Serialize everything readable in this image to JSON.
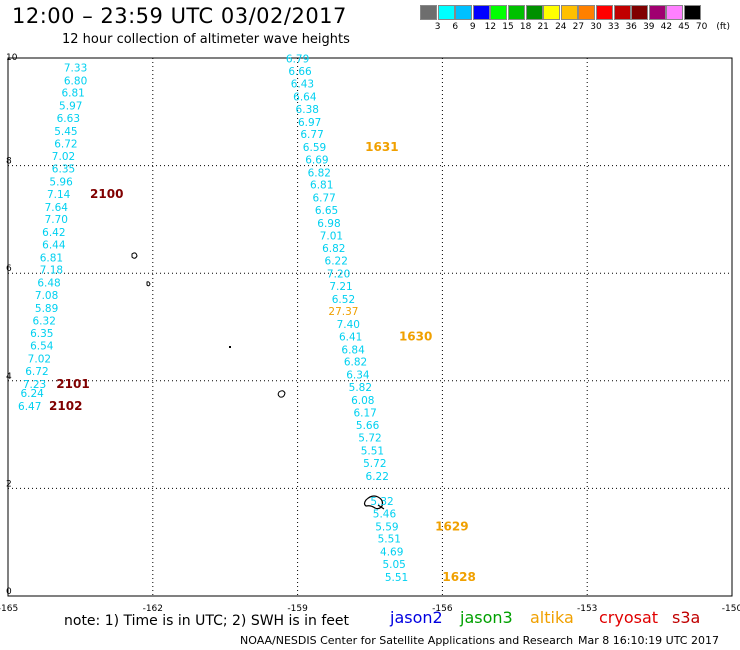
{
  "title": "12:00 – 23:59 UTC 03/02/2017",
  "subtitle": "12 hour collection of altimeter wave heights",
  "colorbar": {
    "labels": [
      "3",
      "6",
      "9",
      "12",
      "15",
      "18",
      "21",
      "24",
      "27",
      "30",
      "33",
      "36",
      "39",
      "42",
      "45",
      "70",
      "(ft)"
    ],
    "colors": [
      "#6e6e6e",
      "#00ffff",
      "#00c0ff",
      "#0000ff",
      "#00ff00",
      "#00c000",
      "#009000",
      "#ffff00",
      "#ffc000",
      "#ff8000",
      "#ff0000",
      "#c00000",
      "#800000",
      "#a00070",
      "#ff80ff",
      "#000000"
    ]
  },
  "map": {
    "lon_ticks": [
      "-165",
      "-162",
      "-159",
      "-156",
      "-153",
      "-150"
    ],
    "lat_ticks": [
      "0",
      "2",
      "4",
      "6",
      "8",
      "10"
    ],
    "lon_range": [
      -165,
      -150
    ],
    "lat_range": [
      0,
      10
    ]
  },
  "tracks": {
    "left_track": {
      "color": "#00d0f0",
      "points": [
        {
          "lon": -163.6,
          "lat": 9.75,
          "v": "7.33"
        },
        {
          "lon": -163.6,
          "lat": 9.51,
          "v": "6.80"
        },
        {
          "lon": -163.65,
          "lat": 9.28,
          "v": "6.81"
        },
        {
          "lon": -163.7,
          "lat": 9.04,
          "v": "5.97"
        },
        {
          "lon": -163.75,
          "lat": 8.81,
          "v": "6.63"
        },
        {
          "lon": -163.8,
          "lat": 8.57,
          "v": "5.45"
        },
        {
          "lon": -163.8,
          "lat": 8.34,
          "v": "6.72"
        },
        {
          "lon": -163.85,
          "lat": 8.1,
          "v": "7.02"
        },
        {
          "lon": -163.85,
          "lat": 7.87,
          "v": "6.35"
        },
        {
          "lon": -163.9,
          "lat": 7.63,
          "v": "5.96"
        },
        {
          "lon": -163.95,
          "lat": 7.4,
          "v": "7.14"
        },
        {
          "lon": -164.0,
          "lat": 7.16,
          "v": "7.64"
        },
        {
          "lon": -164.0,
          "lat": 6.93,
          "v": "7.70"
        },
        {
          "lon": -164.05,
          "lat": 6.69,
          "v": "6.42"
        },
        {
          "lon": -164.05,
          "lat": 6.46,
          "v": "6.44"
        },
        {
          "lon": -164.1,
          "lat": 6.22,
          "v": "6.81"
        },
        {
          "lon": -164.1,
          "lat": 5.99,
          "v": "7.18"
        },
        {
          "lon": -164.15,
          "lat": 5.75,
          "v": "6.48"
        },
        {
          "lon": -164.2,
          "lat": 5.52,
          "v": "7.08"
        },
        {
          "lon": -164.2,
          "lat": 5.28,
          "v": "5.89"
        },
        {
          "lon": -164.25,
          "lat": 5.05,
          "v": "6.32"
        },
        {
          "lon": -164.3,
          "lat": 4.81,
          "v": "6.35"
        },
        {
          "lon": -164.3,
          "lat": 4.58,
          "v": "6.54"
        },
        {
          "lon": -164.35,
          "lat": 4.34,
          "v": "7.02"
        },
        {
          "lon": -164.4,
          "lat": 4.11,
          "v": "6.72"
        },
        {
          "lon": -164.45,
          "lat": 3.87,
          "v": "7.23"
        },
        {
          "lon": -164.5,
          "lat": 3.7,
          "v": "6.24"
        },
        {
          "lon": -164.55,
          "lat": 3.46,
          "v": "6.47"
        }
      ],
      "time_labels": [
        {
          "lon": -163.3,
          "lat": 7.4,
          "t": "2100"
        },
        {
          "lon": -164.0,
          "lat": 3.87,
          "t": "2101"
        },
        {
          "lon": -164.15,
          "lat": 3.46,
          "t": "2102"
        }
      ]
    },
    "right_track": {
      "points": [
        {
          "lon": -159.0,
          "lat": 9.92,
          "v": "6.79",
          "c": "#00d0f0"
        },
        {
          "lon": -158.95,
          "lat": 9.68,
          "v": "6.66",
          "c": "#00d0f0"
        },
        {
          "lon": -158.9,
          "lat": 9.45,
          "v": "6.43",
          "c": "#00d0f0"
        },
        {
          "lon": -158.85,
          "lat": 9.21,
          "v": "6.64",
          "c": "#00d0f0"
        },
        {
          "lon": -158.8,
          "lat": 8.98,
          "v": "6.38",
          "c": "#00d0f0"
        },
        {
          "lon": -158.75,
          "lat": 8.74,
          "v": "6.97",
          "c": "#00d0f0"
        },
        {
          "lon": -158.7,
          "lat": 8.51,
          "v": "6.77",
          "c": "#00d0f0"
        },
        {
          "lon": -158.65,
          "lat": 8.27,
          "v": "6.59",
          "c": "#00d0f0"
        },
        {
          "lon": -158.6,
          "lat": 8.04,
          "v": "6.69",
          "c": "#00d0f0"
        },
        {
          "lon": -158.55,
          "lat": 7.8,
          "v": "6.82",
          "c": "#00d0f0"
        },
        {
          "lon": -158.5,
          "lat": 7.57,
          "v": "6.81",
          "c": "#00d0f0"
        },
        {
          "lon": -158.45,
          "lat": 7.33,
          "v": "6.77",
          "c": "#00d0f0"
        },
        {
          "lon": -158.4,
          "lat": 7.1,
          "v": "6.65",
          "c": "#00d0f0"
        },
        {
          "lon": -158.35,
          "lat": 6.86,
          "v": "6.98",
          "c": "#00d0f0"
        },
        {
          "lon": -158.3,
          "lat": 6.63,
          "v": "7.01",
          "c": "#00d0f0"
        },
        {
          "lon": -158.25,
          "lat": 6.39,
          "v": "6.82",
          "c": "#00d0f0"
        },
        {
          "lon": -158.2,
          "lat": 6.16,
          "v": "6.22",
          "c": "#00d0f0"
        },
        {
          "lon": -158.15,
          "lat": 5.92,
          "v": "7.20",
          "c": "#00d0f0"
        },
        {
          "lon": -158.1,
          "lat": 5.69,
          "v": "7.21",
          "c": "#00d0f0"
        },
        {
          "lon": -158.05,
          "lat": 5.45,
          "v": "6.52",
          "c": "#00d0f0"
        },
        {
          "lon": -158.05,
          "lat": 5.22,
          "v": "27.37",
          "c": "#f0a000"
        },
        {
          "lon": -157.95,
          "lat": 4.98,
          "v": "7.40",
          "c": "#00d0f0"
        },
        {
          "lon": -157.9,
          "lat": 4.75,
          "v": "6.41",
          "c": "#00d0f0"
        },
        {
          "lon": -157.85,
          "lat": 4.51,
          "v": "6.84",
          "c": "#00d0f0"
        },
        {
          "lon": -157.8,
          "lat": 4.28,
          "v": "6.82",
          "c": "#00d0f0"
        },
        {
          "lon": -157.75,
          "lat": 4.04,
          "v": "6.34",
          "c": "#00d0f0"
        },
        {
          "lon": -157.7,
          "lat": 3.81,
          "v": "5.82",
          "c": "#00d0f0"
        },
        {
          "lon": -157.65,
          "lat": 3.57,
          "v": "6.08",
          "c": "#00d0f0"
        },
        {
          "lon": -157.6,
          "lat": 3.34,
          "v": "6.17",
          "c": "#00d0f0"
        },
        {
          "lon": -157.55,
          "lat": 3.1,
          "v": "5.66",
          "c": "#00d0f0"
        },
        {
          "lon": -157.5,
          "lat": 2.87,
          "v": "5.72",
          "c": "#00d0f0"
        },
        {
          "lon": -157.45,
          "lat": 2.63,
          "v": "5.51",
          "c": "#00d0f0"
        },
        {
          "lon": -157.4,
          "lat": 2.4,
          "v": "5.72",
          "c": "#00d0f0"
        },
        {
          "lon": -157.35,
          "lat": 2.16,
          "v": "6.22",
          "c": "#00d0f0"
        },
        {
          "lon": -157.25,
          "lat": 1.69,
          "v": "5.32",
          "c": "#00d0f0"
        },
        {
          "lon": -157.2,
          "lat": 1.46,
          "v": "5.46",
          "c": "#00d0f0"
        },
        {
          "lon": -157.15,
          "lat": 1.22,
          "v": "5.59",
          "c": "#00d0f0"
        },
        {
          "lon": -157.1,
          "lat": 0.99,
          "v": "5.51",
          "c": "#00d0f0"
        },
        {
          "lon": -157.05,
          "lat": 0.75,
          "v": "4.69",
          "c": "#00d0f0"
        },
        {
          "lon": -157.0,
          "lat": 0.52,
          "v": "5.05",
          "c": "#00d0f0"
        },
        {
          "lon": -156.95,
          "lat": 0.28,
          "v": "5.51",
          "c": "#00d0f0"
        }
      ],
      "time_labels": [
        {
          "lon": -157.6,
          "lat": 8.27,
          "t": "1631"
        },
        {
          "lon": -156.9,
          "lat": 4.75,
          "t": "1630"
        },
        {
          "lon": -156.15,
          "lat": 1.22,
          "t": "1629"
        },
        {
          "lon": -156.0,
          "lat": 0.28,
          "t": "1628"
        }
      ]
    }
  },
  "satellite_legend": [
    {
      "name": "jason2",
      "color": "#0000e0"
    },
    {
      "name": "jason3",
      "color": "#00a000"
    },
    {
      "name": "altika",
      "color": "#f0a000"
    },
    {
      "name": "cryosat",
      "color": "#e00000"
    },
    {
      "name": "s3a",
      "color": "#c00000"
    }
  ],
  "note": "note:  1) Time is in UTC;  2) SWH is in feet",
  "credit": "NOAA/NESDIS Center for Satellite Applications and Research",
  "timestamp": "Mar  8 16:10:19 UTC 2017"
}
